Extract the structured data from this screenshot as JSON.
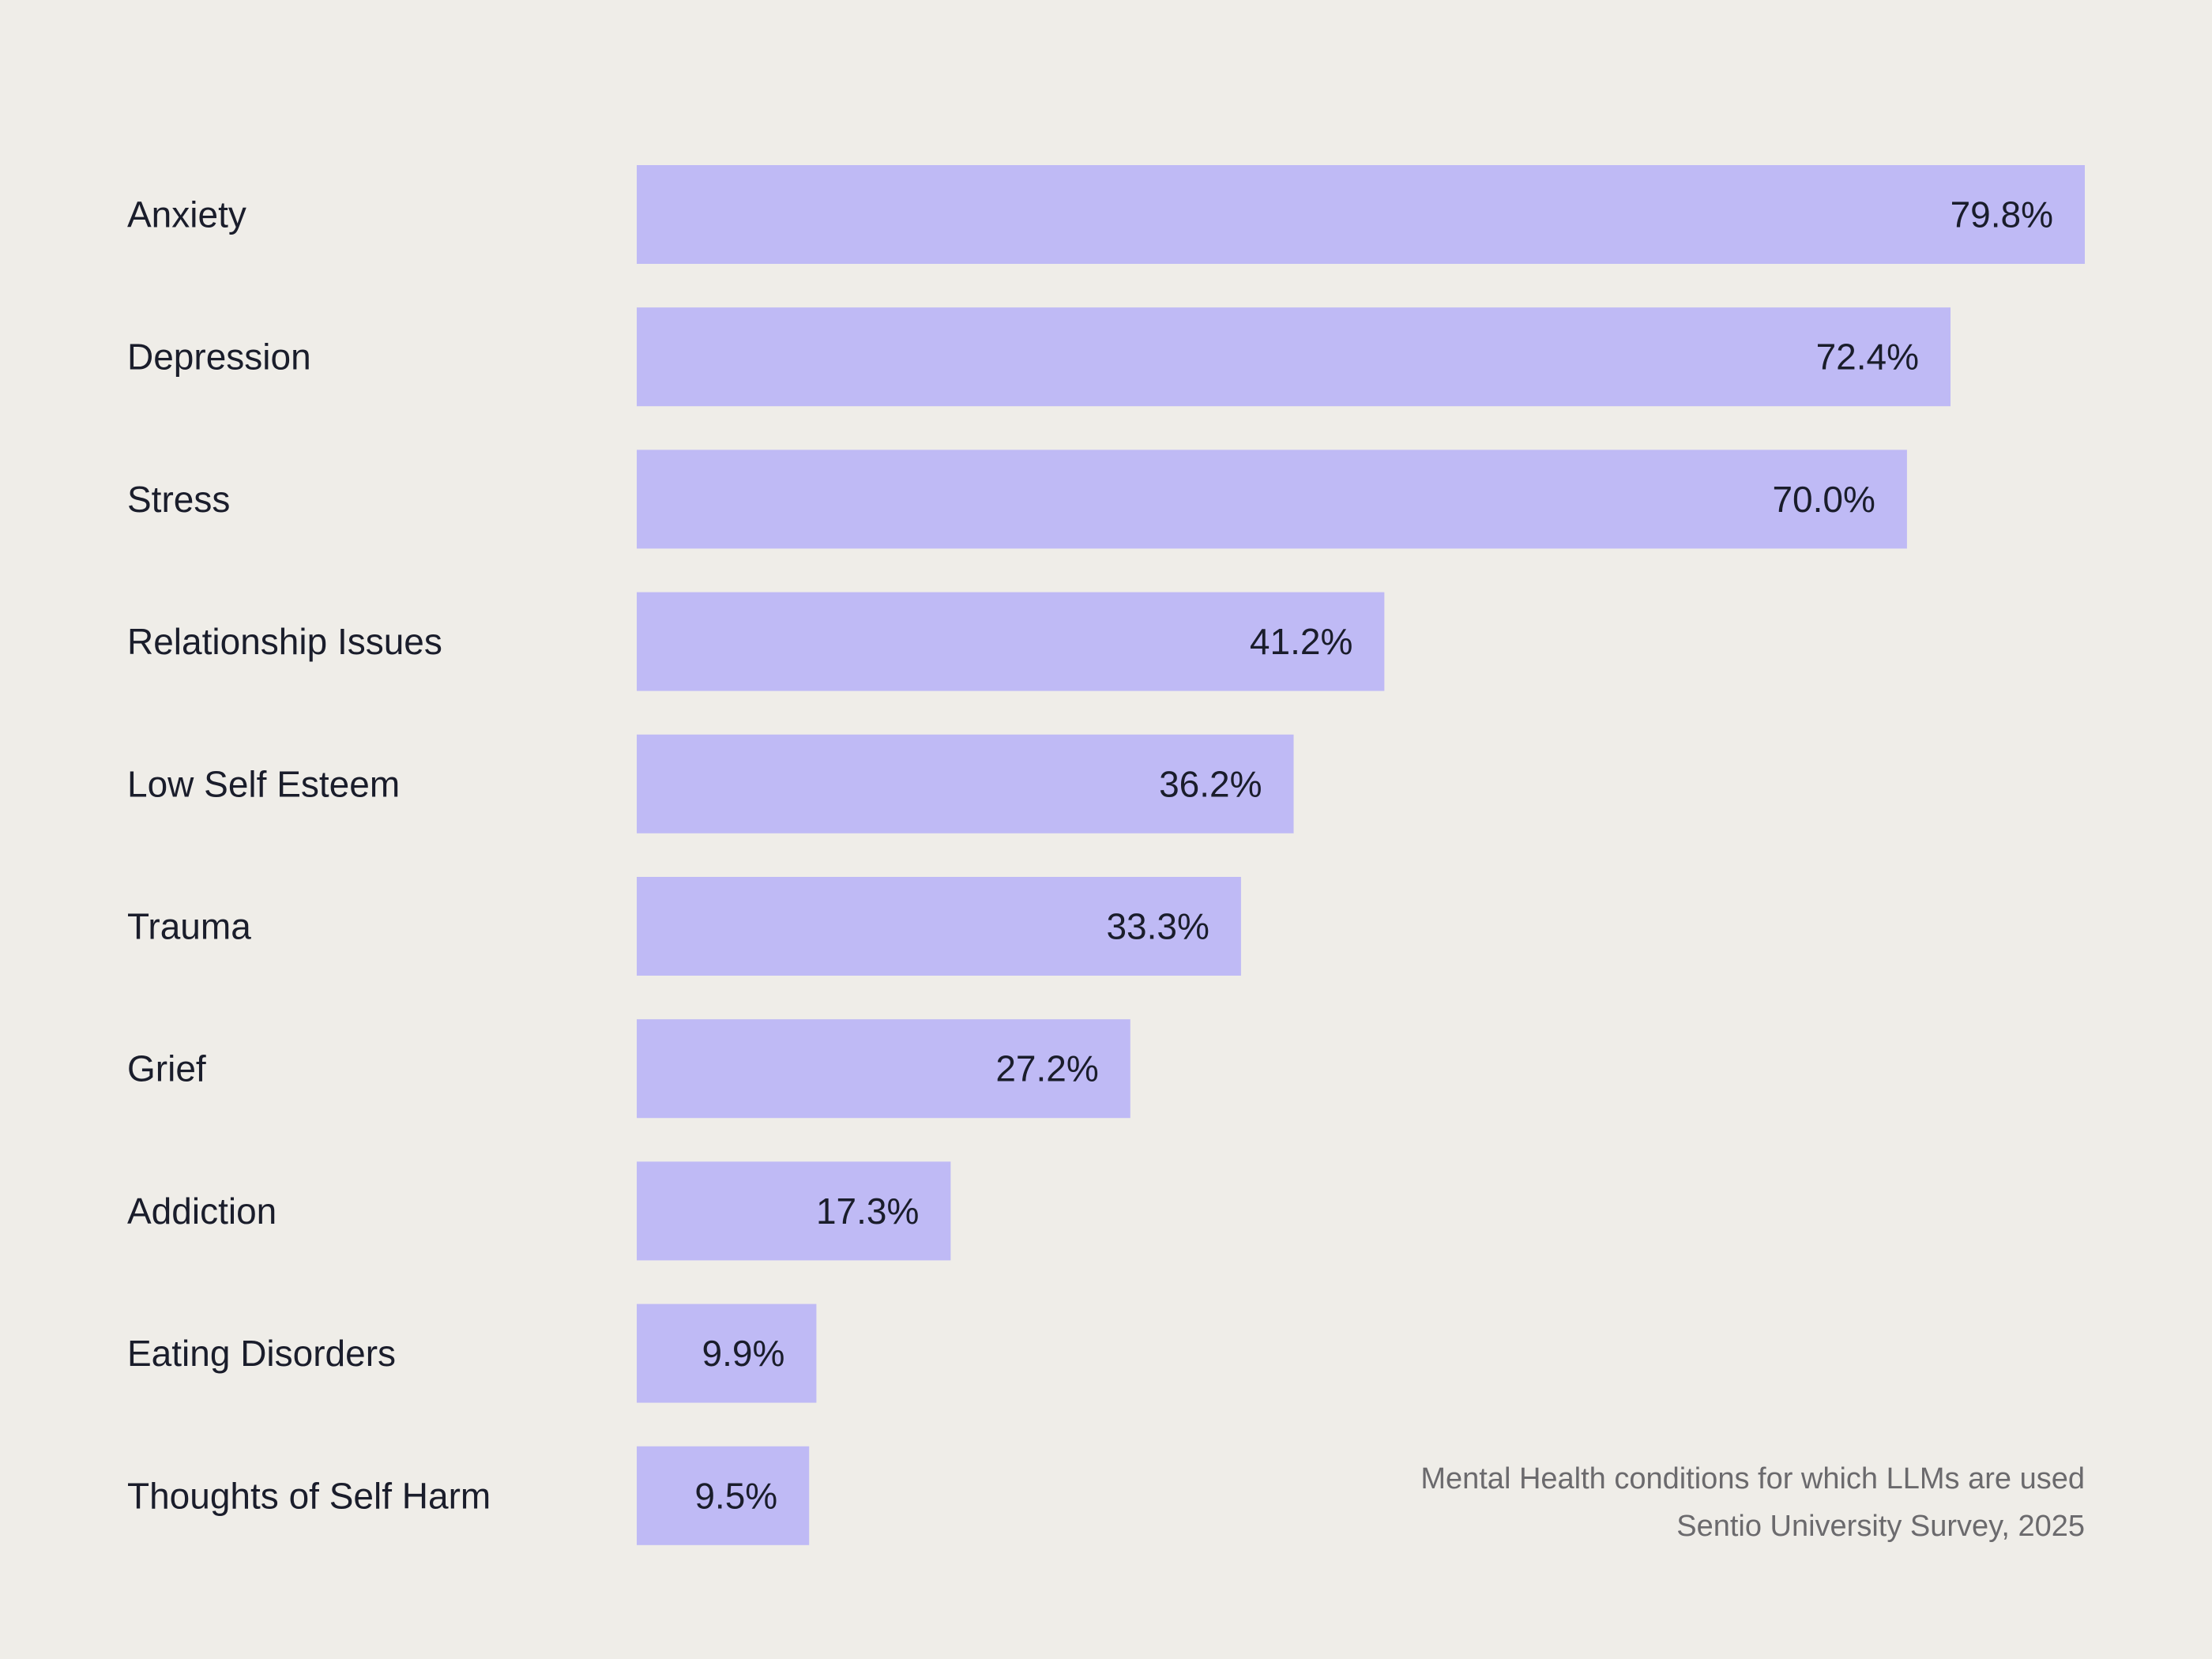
{
  "colors": {
    "background": "#efede8",
    "bar": "#bfbaf5",
    "label_text": "#1a1d2b",
    "caption_text": "#6b6a6d"
  },
  "chart_data": {
    "type": "bar",
    "orientation": "horizontal",
    "categories": [
      "Anxiety",
      "Depression",
      "Stress",
      "Relationship Issues",
      "Low Self Esteem",
      "Trauma",
      "Grief",
      "Addiction",
      "Eating Disorders",
      "Thoughts of Self Harm"
    ],
    "values": [
      79.8,
      72.4,
      70.0,
      41.2,
      36.2,
      33.3,
      27.2,
      17.3,
      9.9,
      9.5
    ],
    "value_labels": [
      "79.8%",
      "72.4%",
      "70.0%",
      "41.2%",
      "36.2%",
      "33.3%",
      "27.2%",
      "17.3%",
      "9.9%",
      "9.5%"
    ],
    "unit": "%",
    "xlim": [
      0,
      79.8
    ],
    "grid": false,
    "legend": "none"
  },
  "caption": {
    "line1": "Mental Health conditions for which LLMs are used",
    "line2": "Sentio University Survey, 2025"
  }
}
